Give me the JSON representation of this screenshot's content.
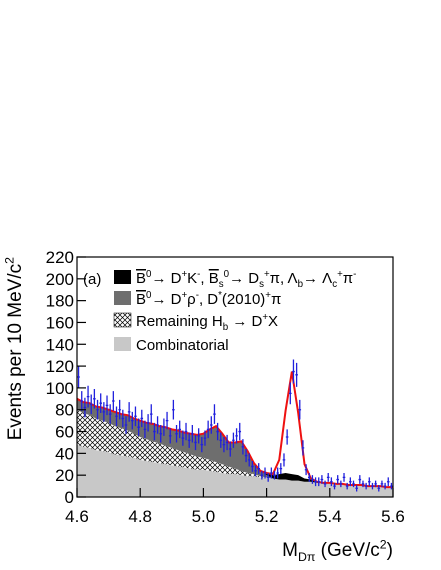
{
  "chart_data": {
    "type": "histfit",
    "panel_label": "(a)",
    "x_label": [
      "M",
      {
        "sub": "Dπ"
      },
      " (GeV/c",
      {
        "sup": "2"
      },
      ")"
    ],
    "y_label": [
      "Events per 10 MeV/c",
      {
        "sup": "2"
      }
    ],
    "xlim": [
      4.6,
      5.6
    ],
    "xticks": [
      4.6,
      4.8,
      {
        "value": 5,
        "label": "5.0"
      },
      5.2,
      5.4,
      5.6
    ],
    "ylim": [
      0,
      220
    ],
    "yticks": [
      0,
      20,
      40,
      60,
      80,
      100,
      120,
      140,
      160,
      180,
      200,
      220
    ],
    "model_x": [
      4.6,
      4.62,
      4.64,
      4.66,
      4.68,
      4.7,
      4.72,
      4.74,
      4.76,
      4.78,
      4.8,
      4.82,
      4.84,
      4.86,
      4.88,
      4.9,
      4.92,
      4.94,
      4.96,
      4.98,
      5.0,
      5.02,
      5.04,
      5.06,
      5.08,
      5.1,
      5.12,
      5.14,
      5.16,
      5.18,
      5.2,
      5.22,
      5.24,
      5.26,
      5.28,
      5.3,
      5.32,
      5.34,
      5.36,
      5.38,
      5.4,
      5.42,
      5.44,
      5.46,
      5.48,
      5.5,
      5.52,
      5.54,
      5.56,
      5.58,
      5.6
    ],
    "series": [
      {
        "name": [
          {
            "over": "B"
          },
          {
            "sup": "0"
          },
          "→ D",
          {
            "sup": "+"
          },
          "K",
          {
            "sup": "-"
          },
          ", ",
          {
            "over": "B"
          },
          {
            "sub": "s"
          },
          {
            "sup": "0"
          },
          "→ D",
          {
            "sub": "s"
          },
          {
            "sup": "+"
          },
          "π, Λ",
          {
            "sub": "b"
          },
          "→ Λ",
          {
            "sub": "c"
          },
          {
            "sup": "+"
          },
          "π",
          {
            "sup": "-"
          }
        ],
        "color": "#000000",
        "values": [
          0,
          0,
          0,
          0,
          0,
          0,
          0,
          0,
          0,
          0,
          0,
          0,
          0,
          0,
          0,
          0,
          0,
          0,
          0,
          0,
          0,
          0,
          0,
          0,
          0,
          0,
          0,
          0,
          0,
          0,
          2,
          3,
          5,
          6,
          6,
          5,
          3,
          2,
          1,
          0,
          0,
          0,
          0,
          0,
          0,
          0,
          0,
          0,
          0,
          0,
          0
        ]
      },
      {
        "name": [
          {
            "over": "B"
          },
          {
            "sup": "0"
          },
          "→ D",
          {
            "sup": "+"
          },
          "ρ",
          {
            "sup": "-"
          },
          ", D",
          {
            "sup": "*"
          },
          "(2010)",
          {
            "sup": "+"
          },
          "π"
        ],
        "color": "#6e6e6e",
        "values": [
          10,
          10,
          11,
          11,
          12,
          12,
          13,
          13,
          14,
          14,
          15,
          15,
          16,
          16,
          17,
          17,
          18,
          18,
          19,
          20,
          22,
          28,
          33,
          28,
          22,
          24,
          27,
          20,
          10,
          5,
          2,
          0,
          0,
          0,
          0,
          0,
          0,
          0,
          0,
          0,
          0,
          0,
          0,
          0,
          0,
          0,
          0,
          0,
          0,
          0,
          0
        ]
      },
      {
        "name": [
          "Remaining H",
          {
            "sub": "b"
          },
          " → D",
          {
            "sup": "+"
          },
          "X"
        ],
        "color": "#000000",
        "pattern": "crosshatch",
        "values": [
          32,
          31,
          30,
          29,
          28,
          27,
          26,
          25,
          24,
          22,
          21,
          20,
          19,
          18,
          17,
          16,
          15,
          14,
          13,
          12,
          11,
          10,
          9,
          8,
          7,
          5,
          4,
          3,
          2,
          1,
          0,
          0,
          0,
          0,
          0,
          0,
          0,
          0,
          0,
          0,
          0,
          0,
          0,
          0,
          0,
          0,
          0,
          0,
          0,
          0,
          0
        ]
      },
      {
        "name": [
          "Combinatorial"
        ],
        "color": "#c8c8c8",
        "values": [
          48,
          46,
          45,
          43,
          42,
          41,
          39,
          38,
          37,
          36,
          34,
          33,
          32,
          31,
          30,
          29,
          28,
          27,
          26,
          25,
          25,
          24,
          23,
          22,
          21,
          21,
          20,
          19,
          19,
          18,
          18,
          17,
          16,
          16,
          15,
          15,
          14,
          14,
          13,
          13,
          13,
          12,
          12,
          11,
          11,
          11,
          10,
          10,
          10,
          9,
          9
        ]
      }
    ],
    "fit": {
      "color": "#ee1111",
      "values": [
        90,
        87,
        86,
        83,
        82,
        80,
        78,
        76,
        75,
        72,
        70,
        68,
        67,
        65,
        64,
        62,
        61,
        59,
        58,
        57,
        58,
        62,
        65,
        58,
        50,
        50,
        51,
        42,
        31,
        24,
        22,
        21,
        34,
        79,
        115,
        77,
        30,
        17,
        14,
        13,
        13,
        12,
        12,
        11,
        11,
        11,
        10,
        10,
        10,
        9,
        9
      ]
    },
    "points": {
      "color": "#2020dd",
      "x": [
        4.605,
        4.615,
        4.625,
        4.635,
        4.645,
        4.655,
        4.665,
        4.675,
        4.685,
        4.695,
        4.705,
        4.715,
        4.725,
        4.735,
        4.745,
        4.755,
        4.765,
        4.775,
        4.785,
        4.795,
        4.805,
        4.815,
        4.825,
        4.835,
        4.845,
        4.855,
        4.865,
        4.875,
        4.885,
        4.895,
        4.905,
        4.915,
        4.925,
        4.935,
        4.945,
        4.955,
        4.965,
        4.975,
        4.985,
        4.995,
        5.005,
        5.015,
        5.025,
        5.035,
        5.045,
        5.055,
        5.065,
        5.075,
        5.085,
        5.095,
        5.105,
        5.115,
        5.125,
        5.135,
        5.145,
        5.155,
        5.165,
        5.175,
        5.185,
        5.195,
        5.205,
        5.215,
        5.225,
        5.235,
        5.245,
        5.255,
        5.265,
        5.275,
        5.285,
        5.295,
        5.305,
        5.315,
        5.325,
        5.335,
        5.345,
        5.355,
        5.365,
        5.375,
        5.385,
        5.395,
        5.405,
        5.415,
        5.425,
        5.435,
        5.445,
        5.455,
        5.465,
        5.475,
        5.485,
        5.495,
        5.505,
        5.515,
        5.525,
        5.535,
        5.545,
        5.555,
        5.565,
        5.575,
        5.585,
        5.595
      ],
      "values": [
        110,
        88,
        82,
        92,
        85,
        90,
        80,
        86,
        78,
        84,
        76,
        88,
        74,
        80,
        72,
        66,
        78,
        70,
        74,
        64,
        72,
        62,
        68,
        76,
        60,
        66,
        58,
        64,
        70,
        56,
        80,
        58,
        62,
        54,
        60,
        52,
        58,
        50,
        56,
        48,
        54,
        62,
        66,
        76,
        60,
        52,
        48,
        50,
        44,
        52,
        56,
        60,
        46,
        38,
        34,
        28,
        24,
        26,
        20,
        22,
        18,
        22,
        20,
        22,
        26,
        34,
        55,
        95,
        115,
        112,
        80,
        45,
        25,
        18,
        16,
        14,
        14,
        16,
        12,
        18,
        14,
        10,
        16,
        12,
        18,
        10,
        14,
        12,
        8,
        16,
        12,
        10,
        14,
        10,
        12,
        8,
        12,
        10,
        14,
        10
      ],
      "errors": [
        10,
        9,
        9,
        10,
        9,
        9,
        9,
        9,
        9,
        9,
        9,
        9,
        9,
        9,
        8,
        8,
        9,
        8,
        9,
        8,
        8,
        8,
        8,
        9,
        8,
        8,
        8,
        8,
        8,
        7,
        9,
        8,
        8,
        7,
        8,
        7,
        8,
        7,
        7,
        7,
        7,
        8,
        8,
        9,
        8,
        7,
        7,
        7,
        7,
        7,
        7,
        8,
        7,
        6,
        6,
        5,
        5,
        5,
        4,
        5,
        4,
        5,
        4,
        5,
        5,
        6,
        7,
        10,
        11,
        11,
        9,
        7,
        5,
        4,
        4,
        4,
        4,
        4,
        3,
        4,
        4,
        3,
        4,
        3,
        4,
        3,
        4,
        3,
        3,
        4,
        3,
        3,
        4,
        3,
        3,
        3,
        3,
        3,
        4,
        3
      ]
    }
  }
}
